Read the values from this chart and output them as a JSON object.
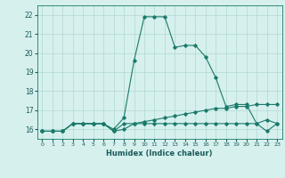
{
  "xlabel": "Humidex (Indice chaleur)",
  "x": [
    0,
    1,
    2,
    3,
    4,
    5,
    6,
    7,
    8,
    9,
    10,
    11,
    12,
    13,
    14,
    15,
    16,
    17,
    18,
    19,
    20,
    21,
    22,
    23
  ],
  "line1": [
    15.9,
    15.9,
    15.9,
    16.3,
    16.3,
    16.3,
    16.3,
    16.0,
    16.6,
    19.6,
    21.9,
    21.9,
    21.9,
    20.3,
    20.4,
    20.4,
    19.8,
    18.7,
    17.2,
    17.3,
    17.3,
    16.3,
    16.5,
    16.3
  ],
  "line2": [
    15.9,
    15.9,
    15.9,
    16.3,
    16.3,
    16.3,
    16.3,
    15.9,
    16.3,
    16.3,
    16.3,
    16.3,
    16.3,
    16.3,
    16.3,
    16.3,
    16.3,
    16.3,
    16.3,
    16.3,
    16.3,
    16.3,
    15.9,
    16.3
  ],
  "line3": [
    15.9,
    15.9,
    15.9,
    16.3,
    16.3,
    16.3,
    16.3,
    15.9,
    16.0,
    16.3,
    16.4,
    16.5,
    16.6,
    16.7,
    16.8,
    16.9,
    17.0,
    17.1,
    17.1,
    17.2,
    17.2,
    17.3,
    17.3,
    17.3
  ],
  "line_color": "#1a7a6a",
  "bg_color": "#d6f0ee",
  "grid_color": "#b0d8d4",
  "ylim": [
    15.5,
    22.5
  ],
  "xlim": [
    -0.5,
    23.5
  ],
  "yticks": [
    16,
    17,
    18,
    19,
    20,
    21,
    22
  ],
  "xticks": [
    0,
    1,
    2,
    3,
    4,
    5,
    6,
    7,
    8,
    9,
    10,
    11,
    12,
    13,
    14,
    15,
    16,
    17,
    18,
    19,
    20,
    21,
    22,
    23
  ]
}
